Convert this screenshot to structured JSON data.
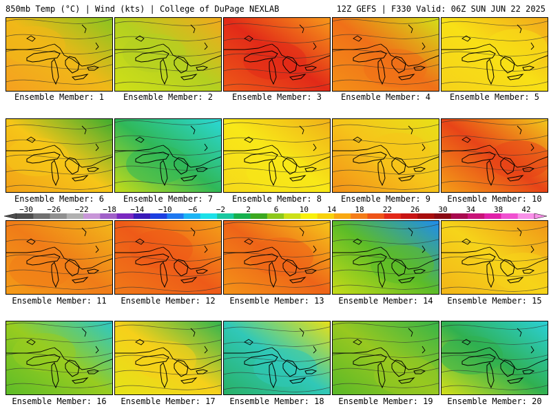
{
  "header": {
    "left": "850mb Temp (°C) | Wind (kts) | College of DuPage NEXLAB",
    "right": "12Z GEFS | F330 Valid: 06Z SUN JUN 22 2025"
  },
  "colorbar": {
    "labels": [
      "−30",
      "−26",
      "−22",
      "−18",
      "−14",
      "−10",
      "−6",
      "−2",
      "2",
      "6",
      "10",
      "14",
      "18",
      "22",
      "26",
      "30",
      "34",
      "38",
      "42"
    ],
    "colors": [
      "#4d4d4d",
      "#707070",
      "#8f8f8f",
      "#b0b0b0",
      "#c896d8",
      "#a060c8",
      "#7a28c0",
      "#3a1ab8",
      "#1c3ee0",
      "#1e78f0",
      "#1cb4f4",
      "#1ce0e8",
      "#19c8a0",
      "#16b04e",
      "#3ca820",
      "#8cc81c",
      "#cce018",
      "#f8f00c",
      "#f8d20c",
      "#f8a812",
      "#f47c18",
      "#ee5418",
      "#e22818",
      "#c81414",
      "#a80e0e",
      "#8a0a14",
      "#a80a4e",
      "#c81478",
      "#e020a8",
      "#f050d0",
      "#f890e8"
    ]
  },
  "panels": [
    {
      "label": "Ensemble Member: 1",
      "field": [
        "#f5a020",
        "#f0b818",
        "#88c420"
      ]
    },
    {
      "label": "Ensemble Member: 2",
      "field": [
        "#d0e018",
        "#b4d020",
        "#f2a81c"
      ]
    },
    {
      "label": "Ensemble Member: 3",
      "field": [
        "#ee5a18",
        "#e22a18",
        "#f79a1a"
      ]
    },
    {
      "label": "Ensemble Member: 4",
      "field": [
        "#f49018",
        "#f07018",
        "#d4e018"
      ]
    },
    {
      "label": "Ensemble Member: 5",
      "field": [
        "#f6d21a",
        "#f8e016",
        "#f2a81c"
      ]
    },
    {
      "label": "Ensemble Member: 6",
      "field": [
        "#f2a018",
        "#f6c618",
        "#3cac30"
      ]
    },
    {
      "label": "Ensemble Member: 7",
      "field": [
        "#c8dc18",
        "#30b858",
        "#2ad8d8"
      ]
    },
    {
      "label": "Ensemble Member: 8",
      "field": [
        "#f6d81a",
        "#f8e818",
        "#f0b018"
      ]
    },
    {
      "label": "Ensemble Member: 9",
      "field": [
        "#f29018",
        "#f6c41a",
        "#e8e018"
      ]
    },
    {
      "label": "Ensemble Member: 10",
      "field": [
        "#f4a018",
        "#e84418",
        "#f2c81a"
      ]
    },
    {
      "label": "Ensemble Member: 11",
      "field": [
        "#f49c18",
        "#f07c18",
        "#f2b81a"
      ]
    },
    {
      "label": "Ensemble Member: 12",
      "field": [
        "#f07a18",
        "#ee5a18",
        "#f4a018"
      ]
    },
    {
      "label": "Ensemble Member: 13",
      "field": [
        "#f49418",
        "#ee6418",
        "#f6c81a"
      ]
    },
    {
      "label": "Ensemble Member: 14",
      "field": [
        "#c8dc18",
        "#5cbc28",
        "#1e8cf0"
      ]
    },
    {
      "label": "Ensemble Member: 15",
      "field": [
        "#f2b418",
        "#f6d41a",
        "#f09418"
      ]
    },
    {
      "label": "Ensemble Member: 16",
      "field": [
        "#5cbc28",
        "#98cc20",
        "#2ac8c8"
      ]
    },
    {
      "label": "Ensemble Member: 17",
      "field": [
        "#e4e418",
        "#f6d01a",
        "#30b450"
      ]
    },
    {
      "label": "Ensemble Member: 18",
      "field": [
        "#28b064",
        "#30c8b8",
        "#e8e018"
      ]
    },
    {
      "label": "Ensemble Member: 19",
      "field": [
        "#58b828",
        "#98c820",
        "#36b448"
      ]
    },
    {
      "label": "Ensemble Member: 20",
      "field": [
        "#d8e018",
        "#30b050",
        "#2ad0d8"
      ]
    }
  ]
}
